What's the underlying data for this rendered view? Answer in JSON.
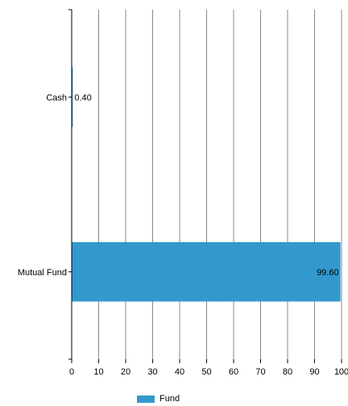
{
  "chart_data": {
    "type": "bar",
    "orientation": "horizontal",
    "categories": [
      "Cash",
      "Mutual Fund"
    ],
    "series": [
      {
        "name": "Fund",
        "values": [
          0.4,
          99.6
        ],
        "value_labels": [
          "0.40",
          "99.60"
        ]
      }
    ],
    "xlim": [
      0,
      100
    ],
    "xticks": [
      "0",
      "10",
      "20",
      "30",
      "40",
      "50",
      "60",
      "70",
      "80",
      "90",
      "100"
    ],
    "grid": true,
    "legend_position": "bottom-center",
    "bar_color": "#3399cc",
    "axis_color": "#000000",
    "grid_color": "#888888"
  }
}
